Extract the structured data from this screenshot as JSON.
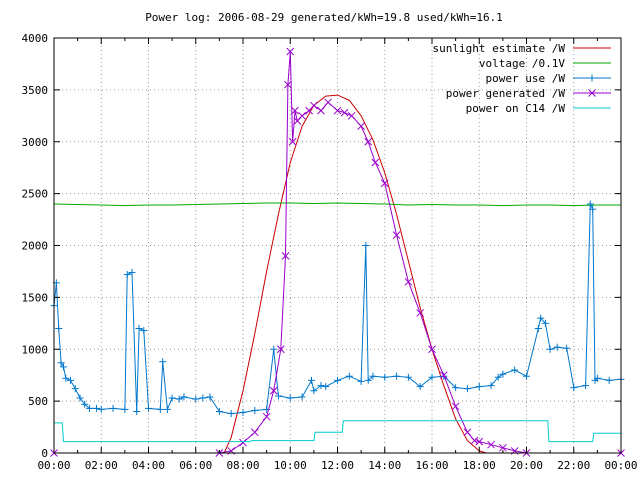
{
  "chart_data": {
    "type": "line",
    "title": "Power log: 2006-08-29 generated/kWh=19.8 used/kWh=16.1",
    "xlabel": "",
    "ylabel": "",
    "xlim": [
      0,
      24
    ],
    "ylim": [
      0,
      4000
    ],
    "x_ticks": [
      "00:00",
      "02:00",
      "04:00",
      "06:00",
      "08:00",
      "10:00",
      "12:00",
      "14:00",
      "16:00",
      "18:00",
      "20:00",
      "22:00",
      "00:00"
    ],
    "y_ticks": [
      "0",
      "500",
      "1000",
      "1500",
      "2000",
      "2500",
      "3000",
      "3500",
      "4000"
    ],
    "grid": true,
    "legend_position": "top-right",
    "series": [
      {
        "name": "sunlight estimate /W",
        "color": "#cc0000",
        "marker": "none",
        "x": [
          0,
          7.2,
          7.5,
          8.0,
          8.5,
          9.0,
          9.5,
          10.0,
          10.5,
          11.0,
          11.5,
          12.0,
          12.5,
          13.0,
          13.5,
          14.0,
          14.5,
          15.0,
          15.5,
          16.0,
          16.5,
          17.0,
          17.5,
          18.0,
          18.3,
          24
        ],
        "values": [
          0,
          0,
          150,
          600,
          1150,
          1750,
          2300,
          2800,
          3150,
          3350,
          3440,
          3450,
          3400,
          3250,
          3020,
          2700,
          2300,
          1850,
          1400,
          1000,
          650,
          330,
          120,
          20,
          0,
          0
        ]
      },
      {
        "name": "voltage /0.1V",
        "color": "#00aa00",
        "marker": "none",
        "x": [
          0,
          1,
          2,
          3,
          4,
          5,
          6,
          7,
          8,
          9,
          10,
          11,
          12,
          13,
          14,
          15,
          16,
          17,
          18,
          19,
          20,
          21,
          22,
          23,
          24
        ],
        "values": [
          2400,
          2395,
          2390,
          2385,
          2390,
          2390,
          2395,
          2400,
          2405,
          2410,
          2410,
          2405,
          2410,
          2405,
          2400,
          2390,
          2395,
          2390,
          2390,
          2385,
          2390,
          2390,
          2385,
          2390,
          2390
        ]
      },
      {
        "name": "power use /W",
        "color": "#0077cc",
        "marker": "plus",
        "x": [
          0,
          0.1,
          0.2,
          0.3,
          0.4,
          0.5,
          0.7,
          0.9,
          1.1,
          1.3,
          1.5,
          1.8,
          2.0,
          2.5,
          3.0,
          3.1,
          3.3,
          3.5,
          3.6,
          3.8,
          4.0,
          4.5,
          4.6,
          4.8,
          5.0,
          5.3,
          5.5,
          6.0,
          6.3,
          6.6,
          7.0,
          7.5,
          8.0,
          8.5,
          9.0,
          9.3,
          9.5,
          10.0,
          10.5,
          10.9,
          11.0,
          11.3,
          11.5,
          12.0,
          12.5,
          13.0,
          13.2,
          13.3,
          13.5,
          14.0,
          14.5,
          15.0,
          15.5,
          16.0,
          16.5,
          17.0,
          17.5,
          18.0,
          18.5,
          18.8,
          19.0,
          19.5,
          20.0,
          20.5,
          20.6,
          20.8,
          21.0,
          21.3,
          21.7,
          22.0,
          22.5,
          22.7,
          22.8,
          22.9,
          23.0,
          23.5,
          24.0
        ],
        "values": [
          1420,
          1640,
          1200,
          870,
          830,
          720,
          700,
          620,
          530,
          470,
          430,
          430,
          420,
          430,
          420,
          1720,
          1740,
          400,
          1200,
          1180,
          430,
          420,
          880,
          420,
          530,
          520,
          540,
          520,
          530,
          540,
          400,
          380,
          390,
          410,
          420,
          1000,
          550,
          530,
          540,
          700,
          600,
          650,
          640,
          700,
          740,
          690,
          2000,
          700,
          740,
          730,
          740,
          730,
          640,
          730,
          740,
          630,
          620,
          640,
          650,
          730,
          760,
          800,
          740,
          1200,
          1300,
          1250,
          1000,
          1020,
          1010,
          630,
          650,
          2400,
          2350,
          700,
          720,
          700,
          710
        ]
      },
      {
        "name": "power generated /W",
        "color": "#9900cc",
        "marker": "cross",
        "x": [
          0,
          7.0,
          7.5,
          8.0,
          8.5,
          9.0,
          9.3,
          9.6,
          9.8,
          9.9,
          10.0,
          10.1,
          10.2,
          10.3,
          10.5,
          10.8,
          11.0,
          11.3,
          11.6,
          12.0,
          12.3,
          12.6,
          13.0,
          13.3,
          13.6,
          14.0,
          14.5,
          15.0,
          15.5,
          16.0,
          16.5,
          17.0,
          17.5,
          17.8,
          18.0,
          18.5,
          19.0,
          19.5,
          20.0,
          24
        ],
        "values": [
          0,
          0,
          20,
          100,
          200,
          350,
          600,
          1000,
          1900,
          3550,
          3870,
          3000,
          3300,
          3200,
          3250,
          3300,
          3350,
          3300,
          3380,
          3300,
          3280,
          3250,
          3150,
          3000,
          2800,
          2600,
          2100,
          1650,
          1350,
          1000,
          750,
          450,
          200,
          120,
          110,
          80,
          50,
          20,
          0,
          0
        ]
      },
      {
        "name": "power on C14 /W",
        "color": "#00cccc",
        "marker": "none",
        "x": [
          0,
          0.35,
          0.4,
          8.3,
          8.35,
          11.0,
          11.05,
          12.2,
          12.25,
          20.9,
          20.95,
          22.8,
          22.85,
          24
        ],
        "values": [
          290,
          290,
          110,
          110,
          120,
          120,
          200,
          200,
          310,
          310,
          110,
          110,
          190,
          190
        ]
      }
    ]
  }
}
